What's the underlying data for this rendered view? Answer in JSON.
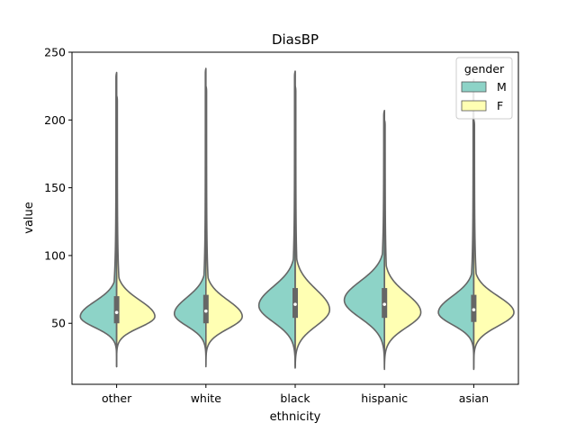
{
  "chart_data": {
    "type": "violin",
    "title": "DiasBP",
    "xlabel": "ethnicity",
    "ylabel": "value",
    "ylim": [
      5,
      250
    ],
    "yticks": [
      50,
      100,
      150,
      200,
      250
    ],
    "categories": [
      "other",
      "white",
      "black",
      "hispanic",
      "asian"
    ],
    "split": true,
    "legend": {
      "title": "gender",
      "position": "top-right",
      "entries": [
        {
          "name": "M",
          "color": "#8dd3c7"
        },
        {
          "name": "F",
          "color": "#ffffb3"
        }
      ]
    },
    "series": [
      {
        "name": "M",
        "color": "#8dd3c7",
        "violins": [
          {
            "category": "other",
            "min": 18,
            "max": 235,
            "q1": 50,
            "median": 58,
            "q3": 70,
            "mode": 55,
            "half_width": 0.38,
            "sigma_lo": 8,
            "sigma_hi": 11,
            "tail_scale": 0.16
          },
          {
            "category": "white",
            "min": 18,
            "max": 238,
            "q1": 50,
            "median": 59,
            "q3": 71,
            "mode": 57,
            "half_width": 0.33,
            "sigma_lo": 9,
            "sigma_hi": 12,
            "tail_scale": 0.16
          },
          {
            "category": "black",
            "min": 17,
            "max": 236,
            "q1": 54,
            "median": 64,
            "q3": 76,
            "mode": 63,
            "half_width": 0.38,
            "sigma_lo": 12,
            "sigma_hi": 14,
            "tail_scale": 0.16
          },
          {
            "category": "hispanic",
            "min": 16,
            "max": 207,
            "q1": 54,
            "median": 64,
            "q3": 76,
            "mode": 67,
            "half_width": 0.42,
            "sigma_lo": 13,
            "sigma_hi": 14,
            "tail_scale": 0.16
          },
          {
            "category": "asian",
            "min": 16,
            "max": 230,
            "q1": 51,
            "median": 60,
            "q3": 71,
            "mode": 58,
            "half_width": 0.37,
            "sigma_lo": 9,
            "sigma_hi": 12,
            "tail_scale": 0.16
          }
        ]
      },
      {
        "name": "F",
        "color": "#ffffb3",
        "violins": [
          {
            "category": "other",
            "min": 18,
            "max": 218,
            "q1": 50,
            "median": 58,
            "q3": 70,
            "mode": 55,
            "half_width": 0.4,
            "sigma_lo": 8,
            "sigma_hi": 12,
            "tail_scale": 0.15
          },
          {
            "category": "white",
            "min": 19,
            "max": 225,
            "q1": 50,
            "median": 59,
            "q3": 71,
            "mode": 55,
            "half_width": 0.38,
            "sigma_lo": 9,
            "sigma_hi": 12,
            "tail_scale": 0.15
          },
          {
            "category": "black",
            "min": 18,
            "max": 225,
            "q1": 54,
            "median": 64,
            "q3": 76,
            "mode": 60,
            "half_width": 0.36,
            "sigma_lo": 12,
            "sigma_hi": 15,
            "tail_scale": 0.15
          },
          {
            "category": "hispanic",
            "min": 17,
            "max": 200,
            "q1": 54,
            "median": 64,
            "q3": 76,
            "mode": 58,
            "half_width": 0.38,
            "sigma_lo": 11,
            "sigma_hi": 14,
            "tail_scale": 0.15
          },
          {
            "category": "asian",
            "min": 17,
            "max": 200,
            "q1": 51,
            "median": 60,
            "q3": 71,
            "mode": 58,
            "half_width": 0.42,
            "sigma_lo": 10,
            "sigma_hi": 12,
            "tail_scale": 0.15
          }
        ]
      }
    ]
  }
}
